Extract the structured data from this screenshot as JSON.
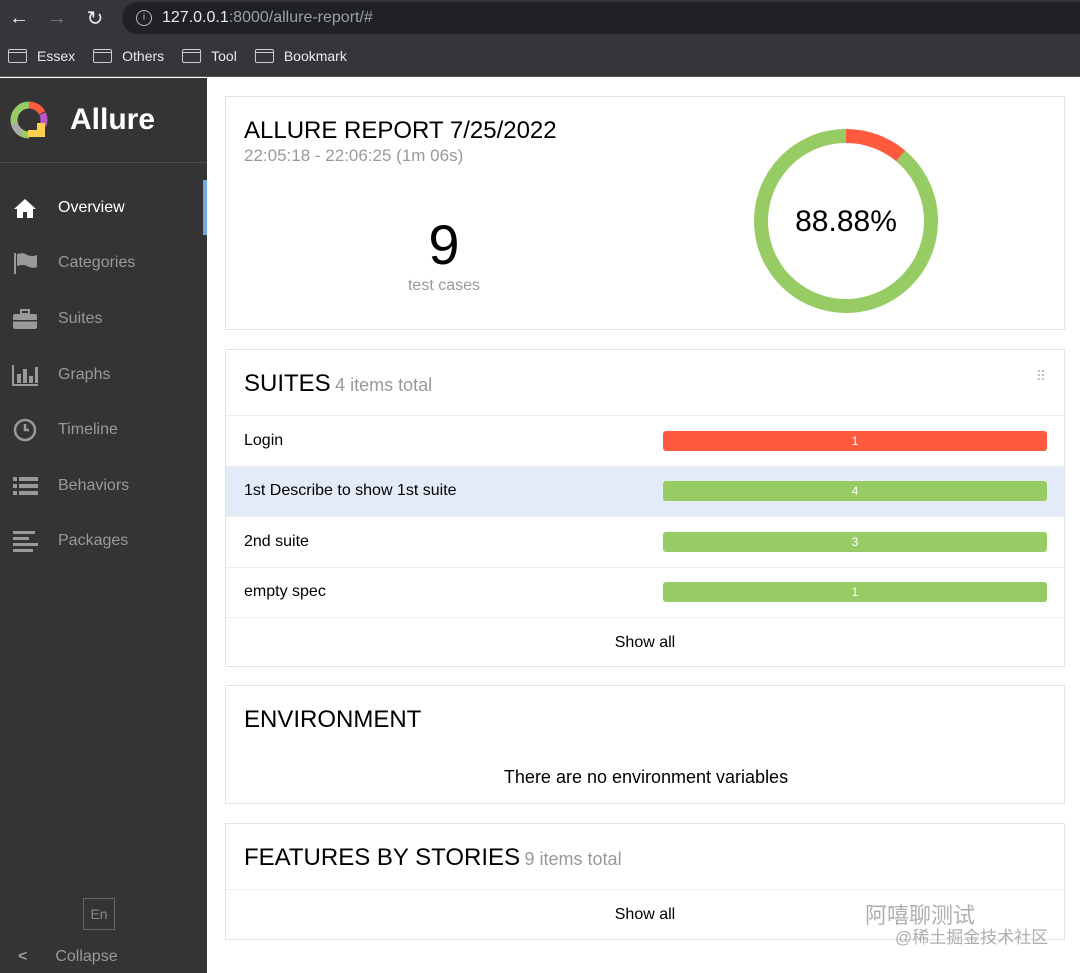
{
  "browser": {
    "url_host": "127.0.0.1",
    "url_rest": ":8000/allure-report/#",
    "bookmarks": [
      "Essex",
      "Others",
      "Tool",
      "Bookmark"
    ]
  },
  "sidebar": {
    "brand": "Allure",
    "items": [
      {
        "label": "Overview",
        "icon": "home-icon",
        "active": true
      },
      {
        "label": "Categories",
        "icon": "flag-icon"
      },
      {
        "label": "Suites",
        "icon": "briefcase-icon"
      },
      {
        "label": "Graphs",
        "icon": "bar-chart-icon"
      },
      {
        "label": "Timeline",
        "icon": "clock-icon"
      },
      {
        "label": "Behaviors",
        "icon": "list-icon"
      },
      {
        "label": "Packages",
        "icon": "align-left-icon"
      }
    ],
    "lang": "En",
    "collapse": "Collapse"
  },
  "report": {
    "title": "ALLURE REPORT 7/25/2022",
    "time": "22:05:18 - 22:06:25 (1m 06s)",
    "count": "9",
    "count_label": "test cases",
    "percent": "88.88%",
    "passed_fraction": 0.8888,
    "colors": {
      "passed": "#97cc64",
      "failed": "#fd5a3e"
    }
  },
  "suites": {
    "title": "SUITES",
    "subtitle": "4 items total",
    "rows": [
      {
        "name": "Login",
        "value": "1",
        "status": "failed"
      },
      {
        "name": "1st Describe to show 1st suite",
        "value": "4",
        "status": "passed"
      },
      {
        "name": "2nd suite",
        "value": "3",
        "status": "passed"
      },
      {
        "name": "empty spec",
        "value": "1",
        "status": "passed"
      }
    ],
    "show_all": "Show all"
  },
  "environment": {
    "title": "ENVIRONMENT",
    "empty": "There are no environment variables"
  },
  "features": {
    "title": "FEATURES BY STORIES",
    "subtitle": "9 items total",
    "show_all": "Show all"
  },
  "watermark": {
    "line1": "阿嘻聊测试",
    "line2": "@稀土掘金技术社区"
  }
}
